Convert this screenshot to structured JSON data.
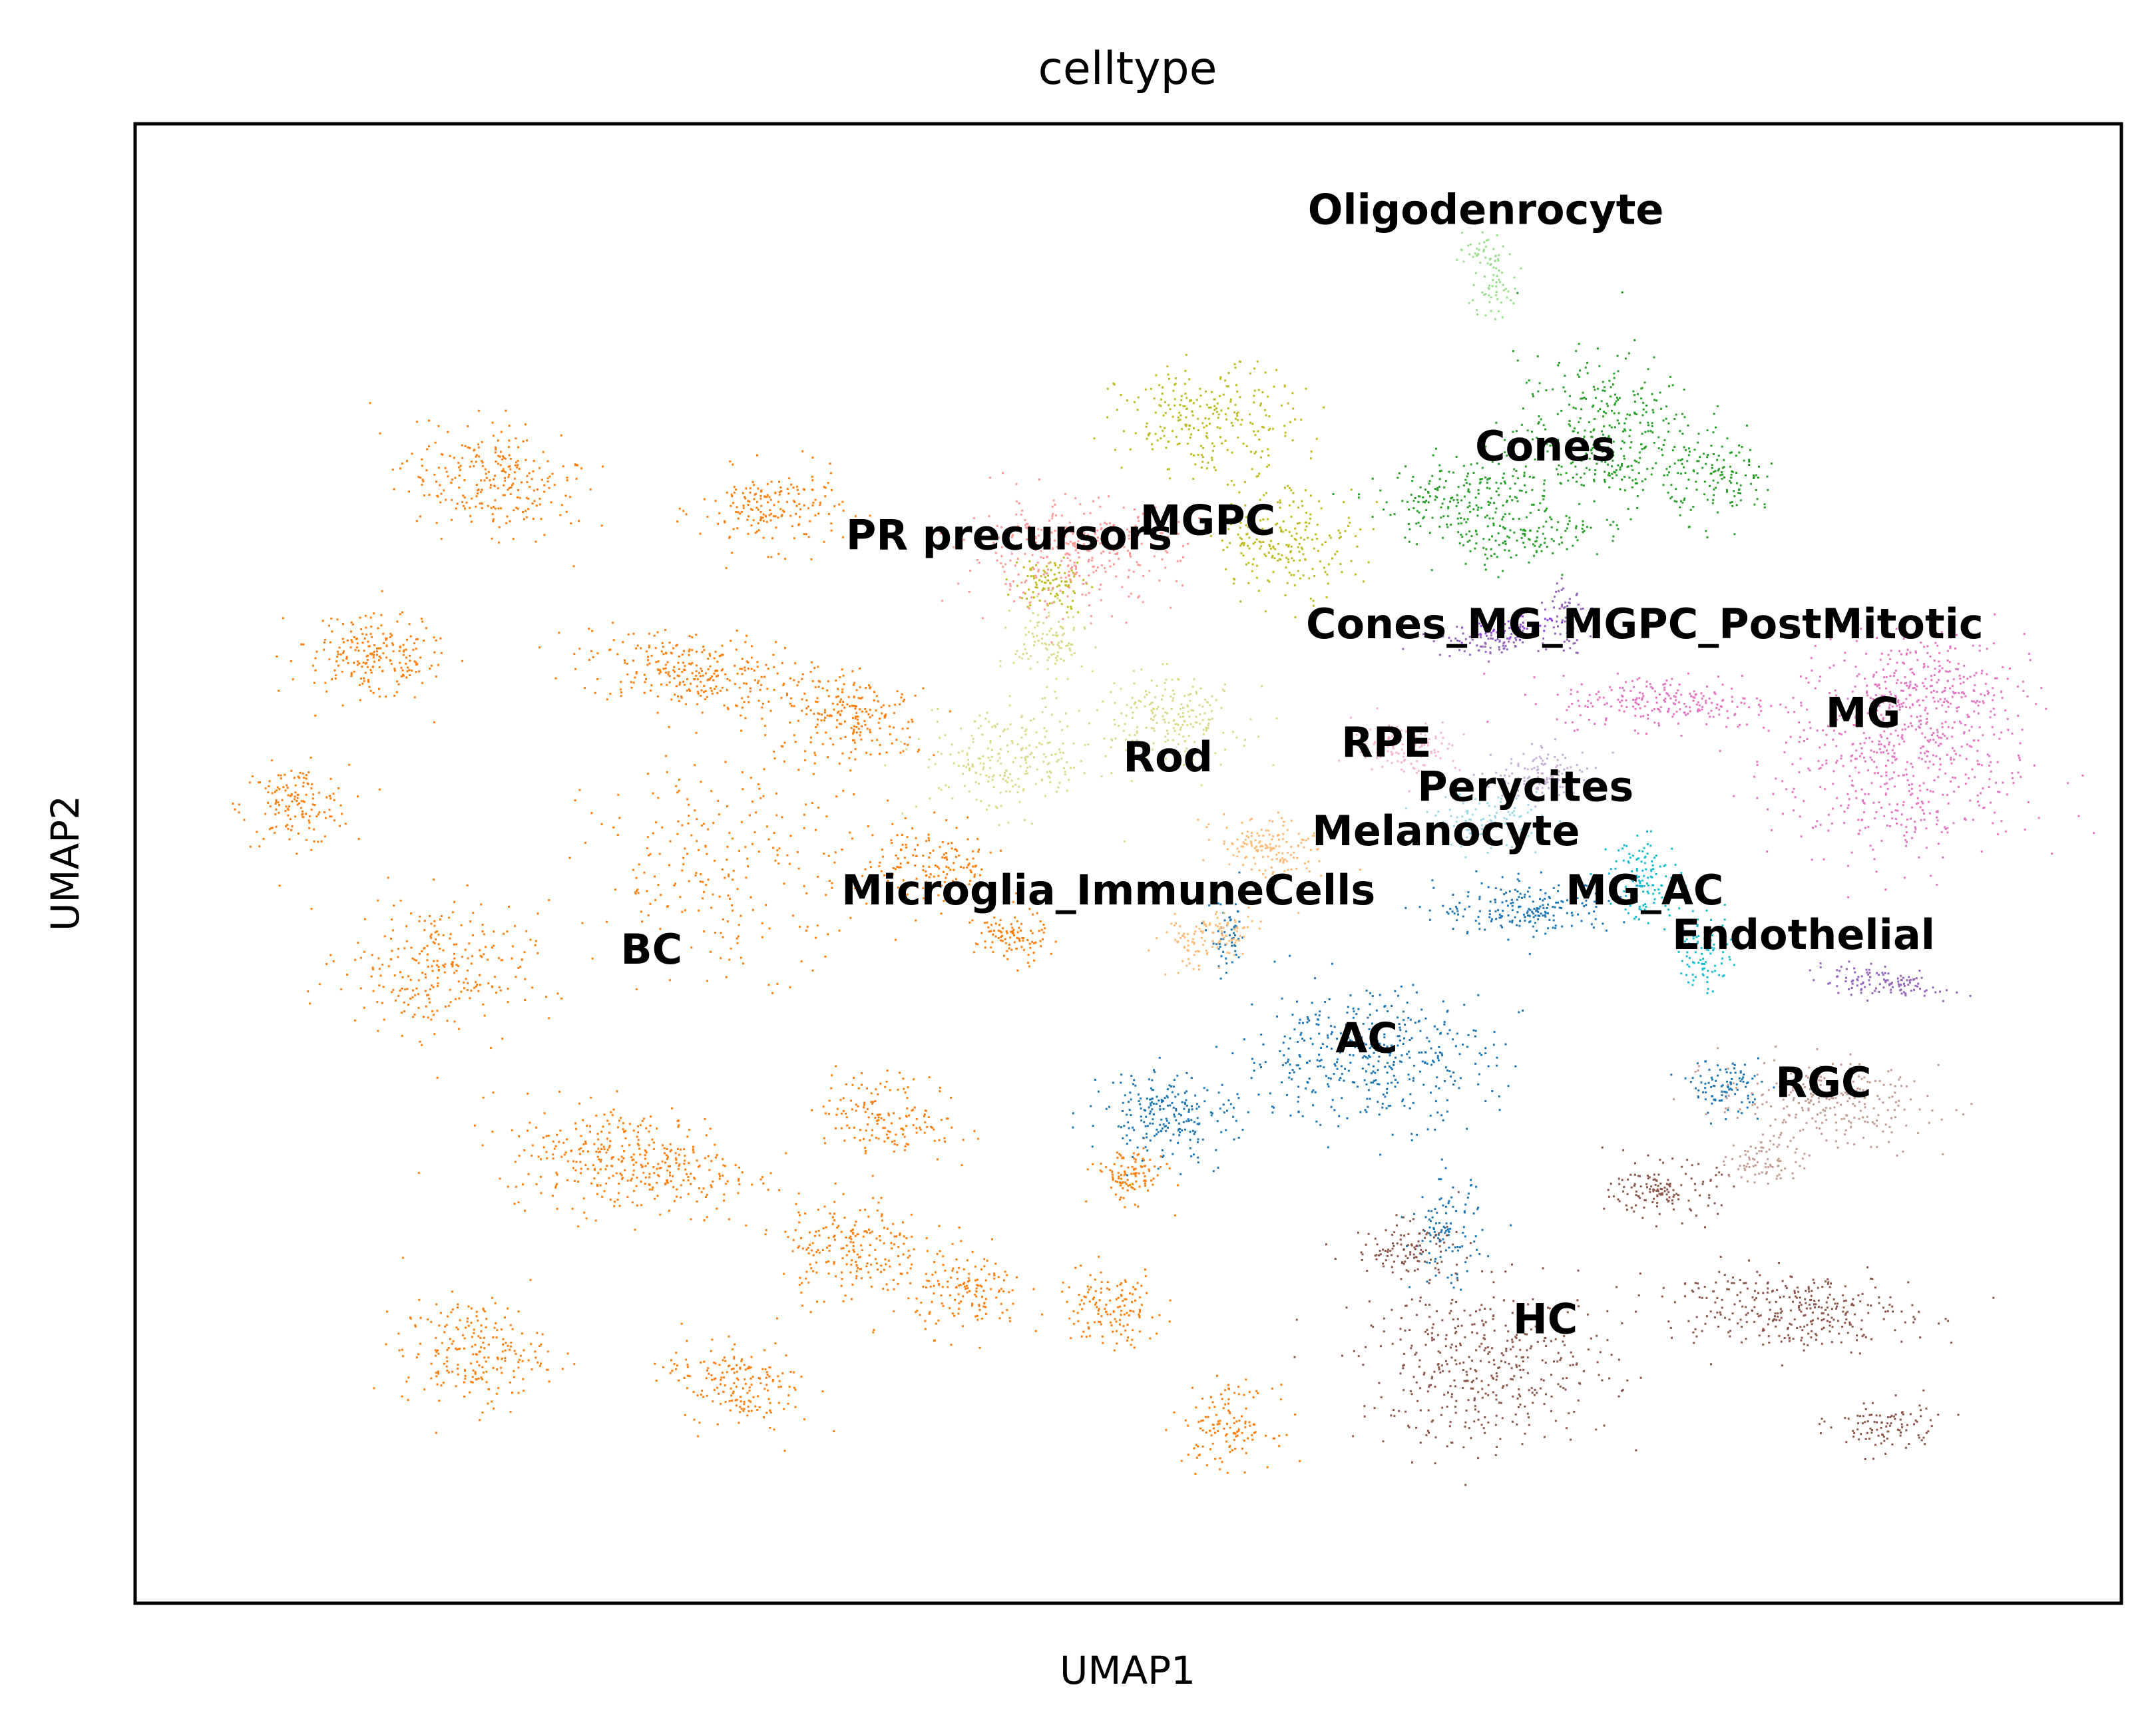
{
  "chart_data": {
    "type": "scatter",
    "title": "celltype",
    "xlabel": "UMAP1",
    "ylabel": "UMAP2",
    "xlim": [
      0,
      100
    ],
    "ylim": [
      0,
      100
    ],
    "grid": false,
    "legend": "on data",
    "axis_ticks": false,
    "clusters": [
      {
        "name": "BC",
        "color": "#ff7f0e",
        "label_x": 26,
        "label_y": 44
      },
      {
        "name": "AC",
        "color": "#1f77b4",
        "label_x": 62,
        "label_y": 38
      },
      {
        "name": "HC",
        "color": "#8c564b",
        "label_x": 71,
        "label_y": 19
      },
      {
        "name": "RGC",
        "color": "#c49c94",
        "label_x": 85,
        "label_y": 35
      },
      {
        "name": "MG",
        "color": "#e377c2",
        "label_x": 87,
        "label_y": 60
      },
      {
        "name": "Cones",
        "color": "#2ca02c",
        "label_x": 71,
        "label_y": 78
      },
      {
        "name": "Rod",
        "color": "#dbdb8d",
        "label_x": 52,
        "label_y": 57
      },
      {
        "name": "MGPC",
        "color": "#bcbd22",
        "label_x": 54,
        "label_y": 73
      },
      {
        "name": "PR precursors",
        "color": "#ff9896",
        "label_x": 44,
        "label_y": 72
      },
      {
        "name": "RPE",
        "color": "#f7b6d2",
        "label_x": 63,
        "label_y": 58
      },
      {
        "name": "Perycites",
        "color": "#c5b0d5",
        "label_x": 70,
        "label_y": 55
      },
      {
        "name": "Melanocyte",
        "color": "#9edae5",
        "label_x": 66,
        "label_y": 52
      },
      {
        "name": "Microglia_ImmuneCells",
        "color": "#ffbb78",
        "label_x": 49,
        "label_y": 48
      },
      {
        "name": "MG_AC",
        "color": "#17becf",
        "label_x": 76,
        "label_y": 48
      },
      {
        "name": "Endothelial",
        "color": "#9467bd",
        "label_x": 84,
        "label_y": 45
      },
      {
        "name": "Cones_MG_MGPC_PostMitotic",
        "color": "#8e44dd",
        "label_x": 76,
        "label_y": 66
      },
      {
        "name": "Oligodenrocyte",
        "color": "#98df8a",
        "label_x": 68,
        "label_y": 94
      }
    ]
  }
}
